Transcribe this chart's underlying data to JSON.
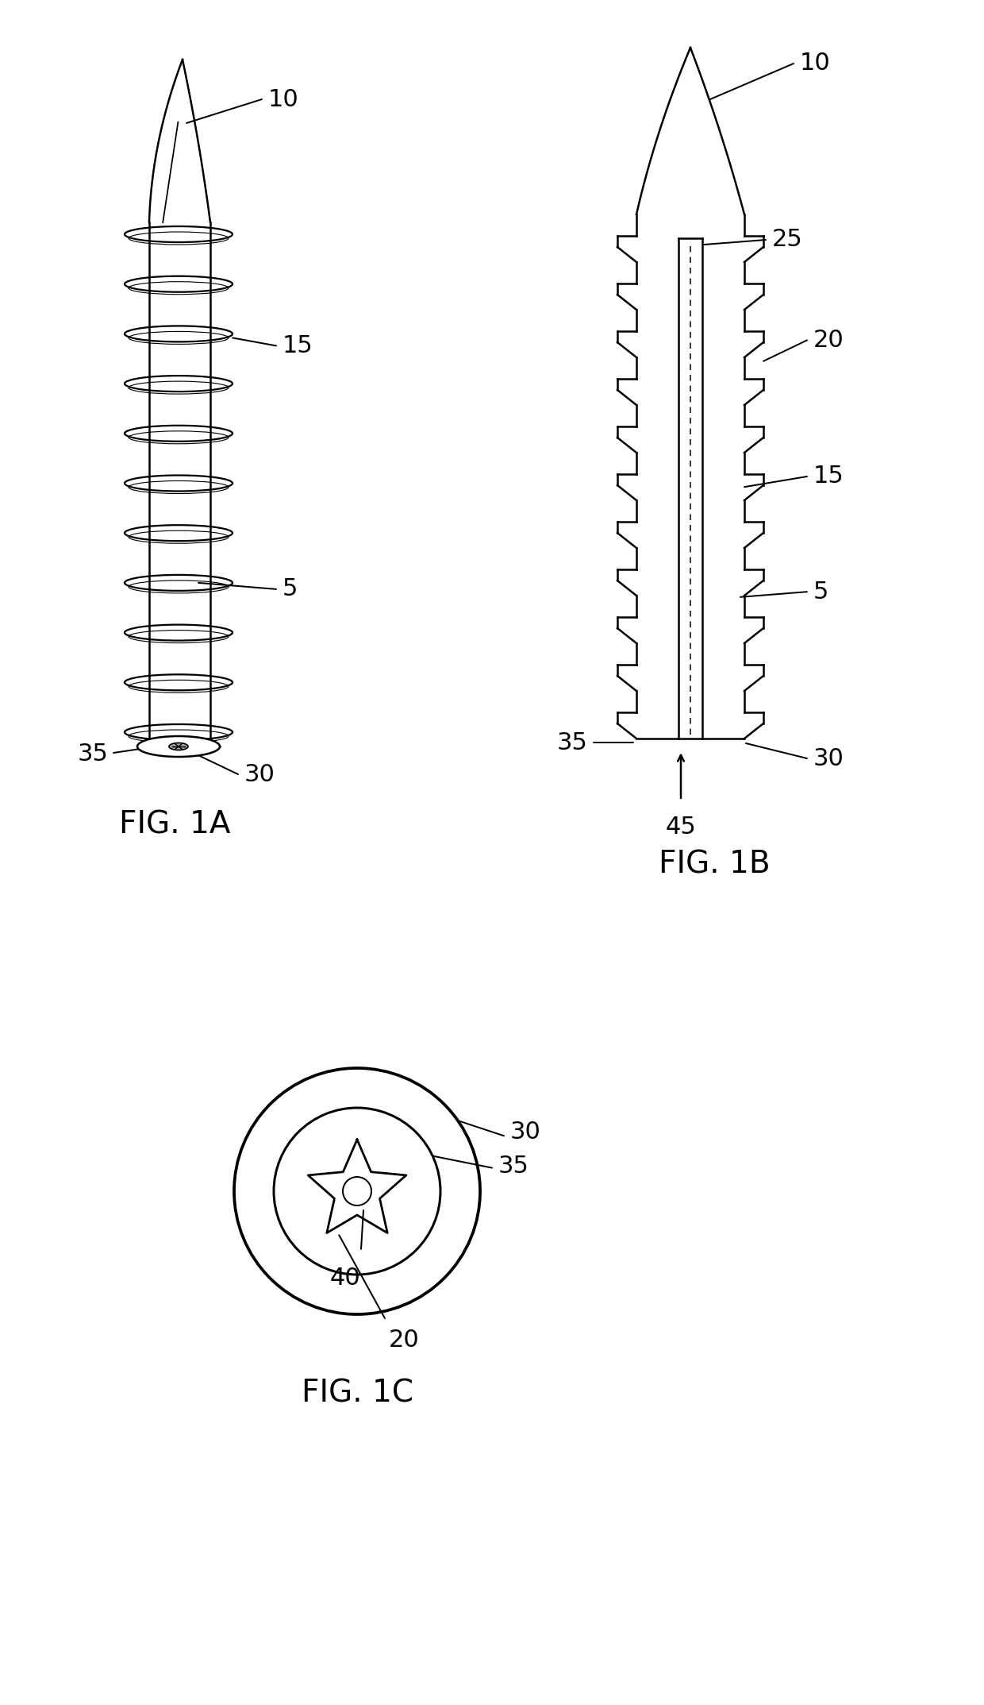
{
  "bg_color": "#ffffff",
  "line_color": "#000000",
  "line_width": 1.8,
  "fig1a_label": "FIG. 1A",
  "fig1b_label": "FIG. 1B",
  "fig1c_label": "FIG. 1C",
  "label_10": "10",
  "label_15": "15",
  "label_5": "5",
  "label_30": "30",
  "label_35": "35",
  "label_20": "20",
  "label_25": "25",
  "label_45": "45",
  "label_40": "40",
  "fontsize_label": 22,
  "fontsize_fig": 28
}
